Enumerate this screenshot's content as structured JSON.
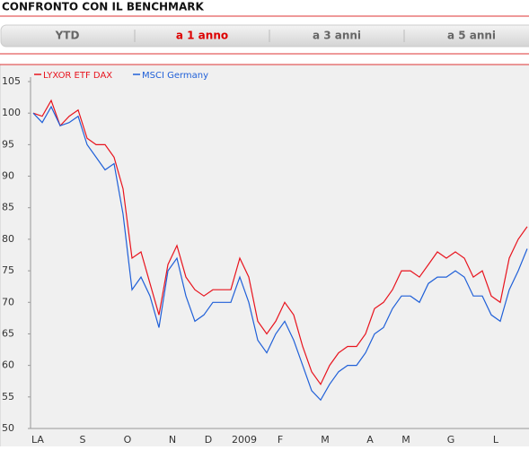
{
  "header": {
    "title": "CONFRONTO CON IL BENCHMARK"
  },
  "tabs": [
    {
      "label": "YTD",
      "active": false
    },
    {
      "label": "a 1 anno",
      "active": true
    },
    {
      "label": "a 3 anni",
      "active": false
    },
    {
      "label": "a 5 anni",
      "active": false
    }
  ],
  "chart_data": {
    "type": "line",
    "categories": [
      "LA",
      null,
      null,
      null,
      null,
      "S",
      null,
      null,
      null,
      null,
      "O",
      null,
      null,
      null,
      null,
      "N",
      null,
      null,
      null,
      "D",
      null,
      null,
      null,
      "2009",
      null,
      null,
      null,
      "F",
      null,
      null,
      null,
      null,
      "M",
      null,
      null,
      null,
      null,
      "A",
      null,
      null,
      null,
      "M",
      null,
      null,
      null,
      null,
      "G",
      null,
      null,
      null,
      null,
      "L",
      null,
      null,
      null,
      null
    ],
    "series": [
      {
        "name": "LYXOR ETF DAX",
        "color": "#e8141e",
        "values": [
          100,
          99.5,
          102,
          98,
          99.5,
          100.5,
          96,
          95,
          95,
          93,
          88,
          77,
          78,
          73,
          68,
          76,
          79,
          74,
          72,
          71,
          72,
          72,
          72,
          77,
          74,
          67,
          65,
          67,
          70,
          68,
          63,
          59,
          57,
          60,
          62,
          63,
          63,
          65,
          69,
          70,
          72,
          75,
          75,
          74,
          76,
          78,
          77,
          78,
          77,
          74,
          75,
          71,
          70,
          77,
          80,
          82
        ]
      },
      {
        "name": "MSCI Germany",
        "color": "#2060d8",
        "values": [
          100,
          98.5,
          101,
          98,
          98.5,
          99.5,
          95,
          93,
          91,
          92,
          84,
          72,
          74,
          71,
          66,
          75,
          77,
          71,
          67,
          68,
          70,
          70,
          70,
          74,
          70,
          64,
          62,
          65,
          67,
          64,
          60,
          56,
          54.5,
          57,
          59,
          60,
          60,
          62,
          65,
          66,
          69,
          71,
          71,
          70,
          73,
          74,
          74,
          75,
          74,
          71,
          71,
          68,
          67,
          72,
          75,
          78.5
        ]
      }
    ],
    "ylim": [
      50,
      105
    ],
    "yticks": [
      50,
      55,
      60,
      65,
      70,
      75,
      80,
      85,
      90,
      95,
      100,
      105
    ],
    "grid": false
  }
}
